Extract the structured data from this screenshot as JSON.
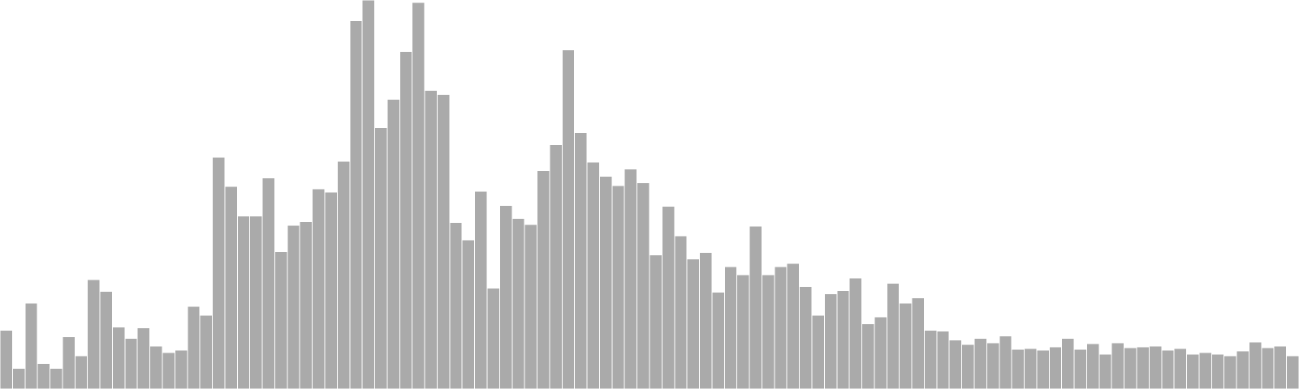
{
  "chart_data": {
    "type": "bar",
    "title": "",
    "xlabel": "",
    "ylabel": "",
    "axes_visible": false,
    "grid": false,
    "legend": "none",
    "bar_color": "#aaaaaa",
    "bar_edge_color": "#ffffff",
    "background_color": "#ffffff",
    "ylim": [
      0,
      470
    ],
    "values": [
      71,
      25,
      104,
      31,
      25,
      63,
      40,
      132,
      118,
      75,
      61,
      74,
      52,
      44,
      47,
      100,
      89,
      280,
      245,
      209,
      209,
      255,
      166,
      198,
      202,
      242,
      238,
      275,
      445,
      470,
      316,
      350,
      408,
      467,
      361,
      356,
      201,
      180,
      239,
      122,
      222,
      206,
      199,
      264,
      295,
      410,
      310,
      274,
      257,
      246,
      266,
      249,
      162,
      221,
      185,
      157,
      165,
      117,
      148,
      138,
      197,
      138,
      148,
      152,
      124,
      89,
      115,
      119,
      134,
      79,
      87,
      128,
      104,
      110,
      71,
      70,
      59,
      54,
      61,
      56,
      64,
      48,
      49,
      47,
      51,
      61,
      48,
      55,
      42,
      56,
      50,
      51,
      52,
      47,
      49,
      42,
      44,
      42,
      40,
      46,
      57,
      50,
      52,
      40
    ]
  }
}
